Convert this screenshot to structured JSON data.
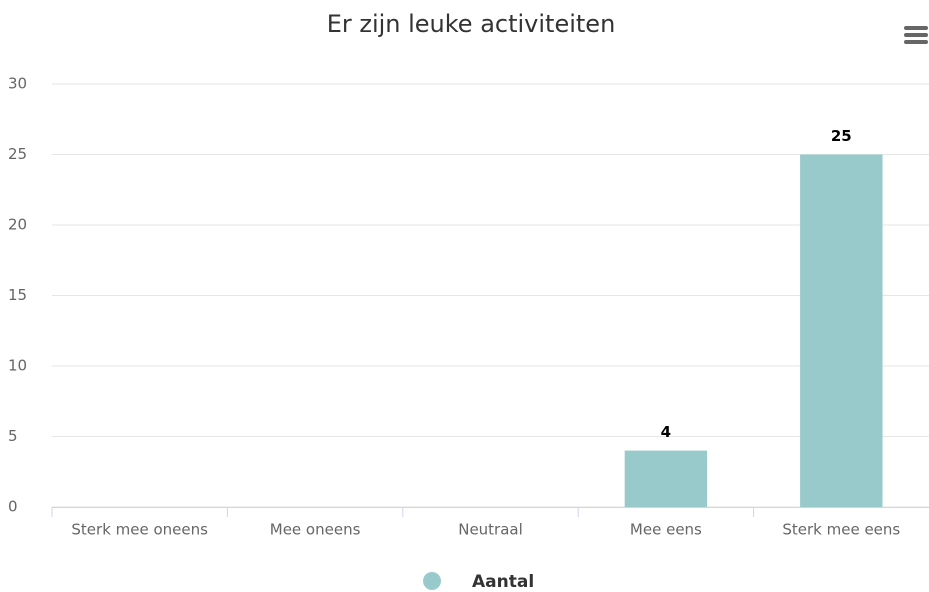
{
  "chart_data": {
    "type": "bar",
    "title": "Er zijn leuke activiteiten",
    "categories": [
      "Sterk mee oneens",
      "Mee oneens",
      "Neutraal",
      "Mee eens",
      "Sterk mee eens"
    ],
    "series": [
      {
        "name": "Aantal",
        "color": "#99cacb",
        "values": [
          null,
          null,
          null,
          4,
          25
        ]
      }
    ],
    "ylim": [
      0,
      30
    ],
    "yticks": [
      0,
      5,
      10,
      15,
      20,
      25,
      30
    ],
    "grid": true,
    "legend": "bottom"
  }
}
